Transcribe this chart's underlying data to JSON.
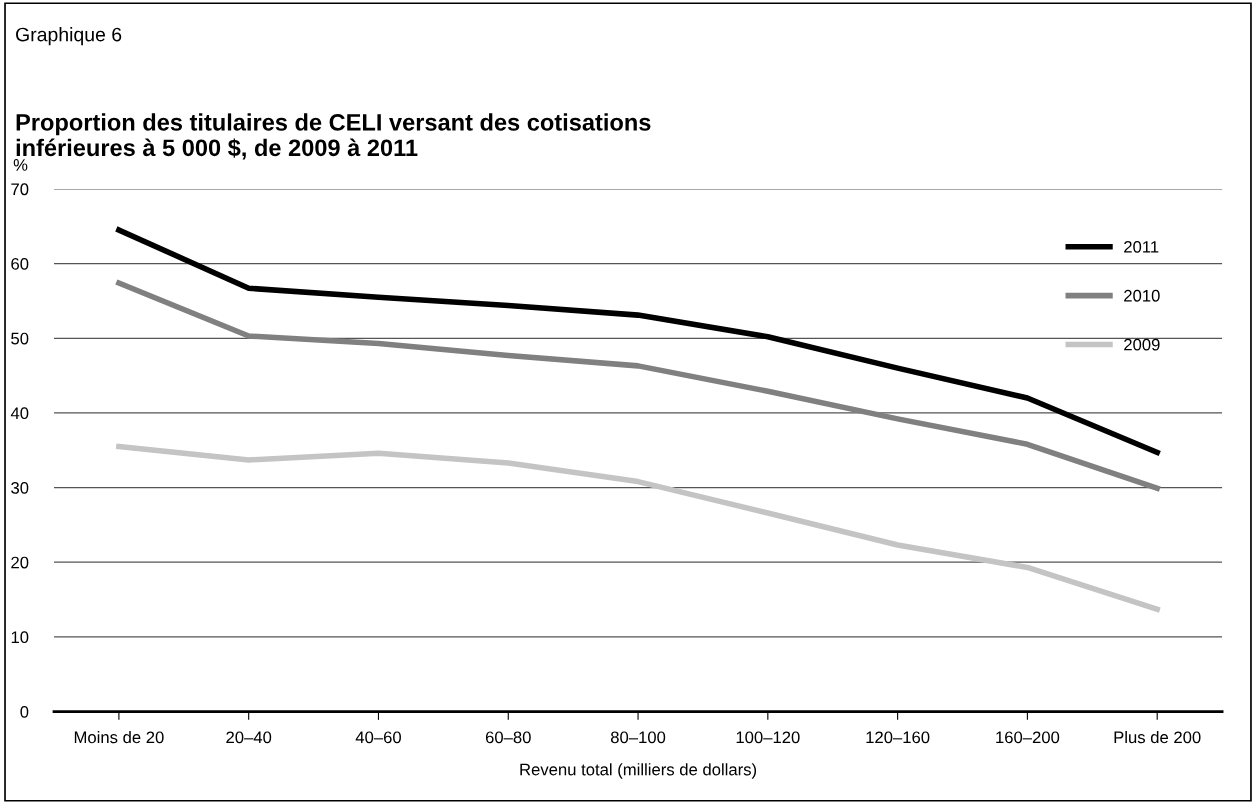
{
  "chart_data": {
    "type": "line",
    "title": "Proportion des titulaires de CELI versant des cotisations\ninférieures à 5 000 $, de 2009 à 2011",
    "annotations": [
      "Graphique 6"
    ],
    "xlabel": "Revenu total (milliers de dollars)",
    "ylabel": "%",
    "categories": [
      "Moins de 20",
      "20–40",
      "40–60",
      "60–80",
      "80–100",
      "100–120",
      "120–160",
      "160–200",
      "Plus de 200"
    ],
    "series": [
      {
        "name": "2011",
        "color": "#000000",
        "values": [
          64.5,
          56.7,
          55.5,
          54.4,
          53.1,
          50.2,
          46.0,
          42.0,
          34.7
        ]
      },
      {
        "name": "2010",
        "color": "#808080",
        "values": [
          57.4,
          50.3,
          49.3,
          47.7,
          46.3,
          42.9,
          39.2,
          35.8,
          29.9
        ]
      },
      {
        "name": "2009",
        "color": "#c4c4c4",
        "values": [
          35.5,
          33.7,
          34.6,
          33.3,
          30.8,
          26.6,
          22.3,
          19.3,
          13.7
        ]
      }
    ],
    "ylim": [
      0,
      70
    ],
    "yticks": [
      0,
      10,
      20,
      30,
      40,
      50,
      60,
      70
    ],
    "grid": "y",
    "legend": "top right",
    "marker": "none",
    "line_style": "solid"
  }
}
